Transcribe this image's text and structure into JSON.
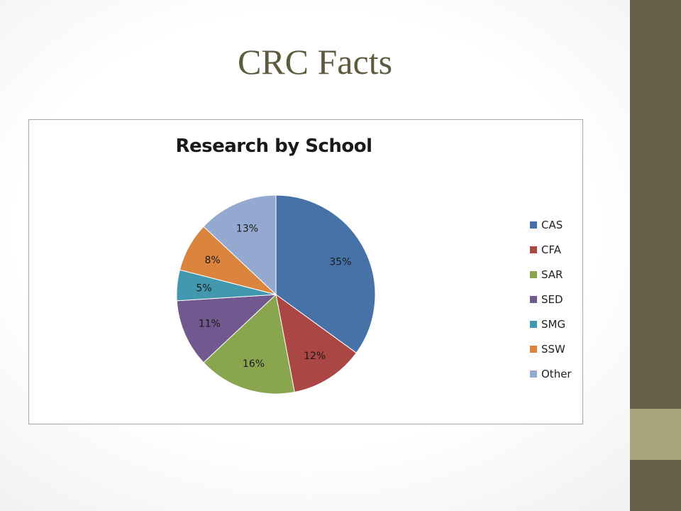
{
  "slide": {
    "title": "CRC Facts",
    "accent_colors": {
      "bar": "#675f48",
      "accent": "#aaa47c"
    }
  },
  "chart_data": {
    "type": "pie",
    "title": "Research by School",
    "legend": "right",
    "categories": [
      "CAS",
      "CFA",
      "SAR",
      "SED",
      "SMG",
      "SSW",
      "Other"
    ],
    "values": [
      35,
      12,
      16,
      11,
      5,
      8,
      13
    ],
    "data_labels": [
      "35%",
      "12%",
      "16%",
      "11%",
      "5%",
      "8%",
      "13%"
    ],
    "colors": [
      "#4672a8",
      "#aa4643",
      "#89a54e",
      "#71588f",
      "#4198af",
      "#db843d",
      "#93a9cf"
    ]
  }
}
